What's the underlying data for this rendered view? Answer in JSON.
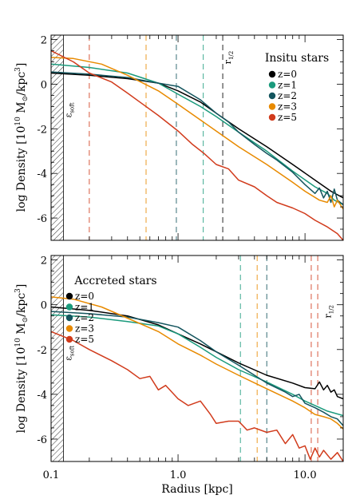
{
  "figure": {
    "ylabel_prefix": "log Density [10",
    "ylabel_exp": "10",
    "ylabel_unit": " M",
    "ylabel_sun": "⊙",
    "ylabel_per": "/kpc",
    "ylabel_cube": "3",
    "ylabel_close": "]",
    "xlabel": "Radius [kpc]"
  },
  "chart_data": [
    {
      "type": "line",
      "title": "Insitu stars",
      "xscale": "log",
      "xlim": [
        0.1,
        20
      ],
      "ylim": [
        -7,
        2.2
      ],
      "xticks": [
        0.1,
        1.0,
        10.0
      ],
      "xtick_labels": [
        "0.1",
        "1.0",
        "10.0"
      ],
      "yticks": [
        2,
        0,
        -2,
        -4,
        -6
      ],
      "ytick_labels": [
        "2",
        "0",
        "-2",
        "-4",
        "-6"
      ],
      "show_xtick_labels": false,
      "softening": {
        "x_max": 0.125,
        "label_main": "ε",
        "label_sub": "soft",
        "label_y": -1.5
      },
      "half_mass_label": {
        "main": "r",
        "sub": "1/2",
        "x": 2.6,
        "y": 0.9
      },
      "legend": {
        "position": "upper-right"
      },
      "series": [
        {
          "name": "z=0",
          "color": "#000000",
          "x": [
            0.1,
            0.2,
            0.4,
            0.7,
            1.0,
            1.5,
            2.0,
            3.0,
            5.0,
            8.0,
            12.0,
            16.0,
            20.0
          ],
          "y": [
            0.5,
            0.4,
            0.25,
            0.05,
            -0.3,
            -0.8,
            -1.3,
            -2.0,
            -2.8,
            -3.6,
            -4.3,
            -4.8,
            -5.1
          ]
        },
        {
          "name": "z=1",
          "color": "#1a9a7c",
          "x": [
            0.1,
            0.2,
            0.4,
            0.7,
            1.0,
            1.5,
            2.0,
            3.0,
            5.0,
            8.0,
            12.0,
            15.0,
            17.0,
            20.0
          ],
          "y": [
            0.9,
            0.75,
            0.5,
            0.05,
            -0.45,
            -1.0,
            -1.45,
            -2.15,
            -3.0,
            -3.9,
            -4.6,
            -4.9,
            -5.2,
            -5.4
          ]
        },
        {
          "name": "z=2",
          "color": "#14555e",
          "x": [
            0.1,
            0.2,
            0.4,
            0.7,
            1.0,
            1.5,
            2.0,
            2.5,
            3.0,
            4.0,
            5.0,
            6.0,
            8.0,
            10.0,
            12.0,
            13.0,
            14.0,
            15.0,
            16.0,
            17.0,
            18.0,
            20.0
          ],
          "y": [
            0.55,
            0.45,
            0.3,
            0.05,
            -0.1,
            -0.7,
            -1.3,
            -1.7,
            -2.15,
            -2.7,
            -3.1,
            -3.4,
            -3.95,
            -4.5,
            -4.9,
            -4.65,
            -5.1,
            -4.8,
            -5.3,
            -4.7,
            -5.2,
            -5.4
          ]
        },
        {
          "name": "z=3",
          "color": "#e88a00",
          "x": [
            0.1,
            0.15,
            0.25,
            0.4,
            0.7,
            1.0,
            1.5,
            2.0,
            3.0,
            5.0,
            8.0,
            10.0,
            13.0,
            15.0,
            16.0,
            17.0,
            18.0,
            20.0
          ],
          "y": [
            1.2,
            1.15,
            0.9,
            0.4,
            -0.3,
            -0.9,
            -1.6,
            -2.1,
            -2.8,
            -3.6,
            -4.4,
            -4.8,
            -5.2,
            -5.3,
            -5.0,
            -5.5,
            -5.2,
            -5.6
          ]
        },
        {
          "name": "z=5",
          "color": "#d13b1c",
          "x": [
            0.1,
            0.15,
            0.2,
            0.3,
            0.4,
            0.5,
            0.7,
            1.0,
            1.3,
            1.6,
            2.0,
            2.5,
            3.0,
            4.0,
            5.0,
            6.0,
            8.0,
            10.0,
            12.0,
            15.0,
            18.0,
            20.0
          ],
          "y": [
            1.5,
            1.0,
            0.5,
            0.1,
            -0.4,
            -0.8,
            -1.4,
            -2.1,
            -2.7,
            -3.1,
            -3.6,
            -3.8,
            -4.3,
            -4.6,
            -5.0,
            -5.3,
            -5.55,
            -5.8,
            -6.1,
            -6.4,
            -6.7,
            -7.0
          ]
        }
      ],
      "vlines": [
        {
          "x": 0.2,
          "color": "#d13b1c"
        },
        {
          "x": 0.56,
          "color": "#e88a00"
        },
        {
          "x": 0.97,
          "color": "#14555e"
        },
        {
          "x": 1.58,
          "color": "#1a9a7c"
        },
        {
          "x": 2.25,
          "color": "#000000"
        }
      ]
    },
    {
      "type": "line",
      "title": "Accreted stars",
      "xscale": "log",
      "xlim": [
        0.1,
        20
      ],
      "ylim": [
        -7,
        2.2
      ],
      "xticks": [
        0.1,
        1.0,
        10.0
      ],
      "xtick_labels": [
        "0.1",
        "1.0",
        "10.0"
      ],
      "yticks": [
        2,
        0,
        -2,
        -4,
        -6
      ],
      "ytick_labels": [
        "2",
        "0",
        "-2",
        "-4",
        "-6"
      ],
      "show_xtick_labels": true,
      "softening": {
        "x_max": 0.125,
        "label_main": "ε",
        "label_sub": "soft",
        "label_y": -2.5
      },
      "half_mass_label": {
        "main": "r",
        "sub": "1/2",
        "x": 16.0,
        "y": -0.6
      },
      "legend": {
        "position": "upper-left"
      },
      "series": [
        {
          "name": "z=0",
          "color": "#000000",
          "x": [
            0.1,
            0.2,
            0.4,
            0.7,
            1.0,
            1.5,
            2.0,
            3.0,
            5.0,
            8.0,
            10.0,
            12.0,
            13.0,
            14.0,
            15.0,
            16.0,
            17.0,
            18.0,
            20.0
          ],
          "y": [
            -0.1,
            -0.25,
            -0.5,
            -0.9,
            -1.3,
            -1.75,
            -2.1,
            -2.6,
            -3.15,
            -3.5,
            -3.7,
            -3.75,
            -3.45,
            -3.8,
            -3.6,
            -3.9,
            -3.8,
            -4.1,
            -4.2
          ]
        },
        {
          "name": "z=1",
          "color": "#1a9a7c",
          "x": [
            0.1,
            0.2,
            0.4,
            0.7,
            1.0,
            1.5,
            2.0,
            3.0,
            5.0,
            8.0,
            10.0,
            12.0,
            15.0,
            20.0
          ],
          "y": [
            -0.45,
            -0.55,
            -0.75,
            -0.95,
            -1.3,
            -1.9,
            -2.35,
            -2.9,
            -3.45,
            -4.0,
            -4.3,
            -4.5,
            -4.75,
            -4.95
          ]
        },
        {
          "name": "z=2",
          "color": "#14555e",
          "x": [
            0.1,
            0.2,
            0.4,
            0.7,
            1.0,
            1.5,
            2.0,
            3.0,
            5.0,
            7.0,
            8.0,
            9.0,
            10.0,
            12.0,
            14.0,
            16.0,
            18.0,
            20.0
          ],
          "y": [
            -0.3,
            -0.4,
            -0.55,
            -0.8,
            -1.0,
            -1.6,
            -2.1,
            -2.7,
            -3.5,
            -3.9,
            -4.1,
            -4.0,
            -4.4,
            -4.6,
            -4.8,
            -5.0,
            -5.1,
            -5.4
          ]
        },
        {
          "name": "z=3",
          "color": "#e88a00",
          "x": [
            0.1,
            0.15,
            0.25,
            0.4,
            0.7,
            1.0,
            1.5,
            2.0,
            3.0,
            5.0,
            8.0,
            10.0,
            12.0,
            14.0,
            16.0,
            18.0,
            20.0
          ],
          "y": [
            0.35,
            0.25,
            -0.1,
            -0.6,
            -1.2,
            -1.75,
            -2.25,
            -2.65,
            -3.15,
            -3.75,
            -4.3,
            -4.6,
            -4.9,
            -5.0,
            -5.1,
            -5.3,
            -5.55
          ]
        },
        {
          "name": "z=5",
          "color": "#d13b1c",
          "x": [
            0.1,
            0.15,
            0.2,
            0.3,
            0.4,
            0.5,
            0.6,
            0.7,
            0.8,
            1.0,
            1.2,
            1.5,
            1.8,
            2.0,
            2.5,
            3.0,
            3.5,
            4.0,
            5.0,
            6.0,
            7.0,
            8.0,
            9.0,
            10.0,
            11.0,
            12.0,
            13.0,
            14.0,
            16.0,
            18.0,
            20.0
          ],
          "y": [
            -1.2,
            -1.6,
            -2.0,
            -2.5,
            -2.9,
            -3.3,
            -3.2,
            -3.8,
            -3.6,
            -4.2,
            -4.5,
            -4.3,
            -4.9,
            -5.3,
            -5.2,
            -5.2,
            -5.6,
            -5.5,
            -5.7,
            -5.6,
            -6.2,
            -5.8,
            -6.4,
            -6.3,
            -6.9,
            -6.4,
            -6.8,
            -6.5,
            -6.9,
            -6.6,
            -7.0
          ]
        }
      ],
      "vlines": [
        {
          "x": 3.1,
          "color": "#1a9a7c"
        },
        {
          "x": 4.2,
          "color": "#e88a00"
        },
        {
          "x": 5.0,
          "color": "#14555e"
        },
        {
          "x": 11.2,
          "color": "#d13b1c"
        },
        {
          "x": 12.6,
          "color": "#d13b1c"
        }
      ]
    }
  ]
}
